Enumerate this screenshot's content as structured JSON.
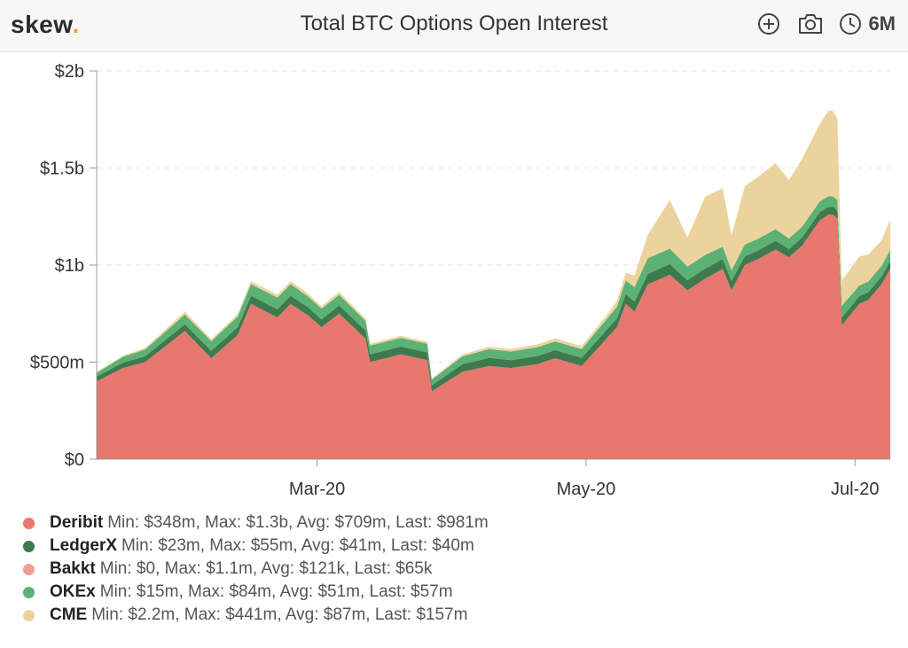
{
  "header": {
    "logo_text": "skew",
    "logo_dot": ".",
    "title": "Total BTC Options Open Interest",
    "icons": [
      "plus-circle-icon",
      "camera-icon",
      "clock-icon"
    ],
    "range_label": "6M"
  },
  "legend": [
    {
      "name": "Deribit",
      "stats": "Min: $348m, Max: $1.3b, Avg: $709m, Last: $981m",
      "color": "#e8776f"
    },
    {
      "name": "LedgerX",
      "stats": "Min: $23m, Max: $55m, Avg: $41m, Last: $40m",
      "color": "#3f7a4e"
    },
    {
      "name": "Bakkt",
      "stats": "Min: $0, Max: $1.1m, Avg: $121k, Last: $65k",
      "color": "#ee9d97"
    },
    {
      "name": "OKEx",
      "stats": "Min: $15m, Max: $84m, Avg: $51m, Last: $57m",
      "color": "#5cb174"
    },
    {
      "name": "CME",
      "stats": "Min: $2.2m, Max: $441m, Avg: $87m, Last: $157m",
      "color": "#ecd39e"
    }
  ],
  "chart_data": {
    "type": "area",
    "stacked": true,
    "title": "Total BTC Options Open Interest",
    "xlabel": "",
    "ylabel": "",
    "x_ticks": [
      "Mar-20",
      "May-20",
      "Jul-20"
    ],
    "x_tick_dates": [
      "2020-03-01",
      "2020-05-01",
      "2020-07-01"
    ],
    "y_ticks": [
      "$0",
      "$500m",
      "$1b",
      "$1.5b",
      "$2b"
    ],
    "y_tick_values": [
      0,
      500,
      1000,
      1500,
      2000
    ],
    "y_unit": "$m",
    "ylim": [
      0,
      2000
    ],
    "xlim": [
      "2020-01-11",
      "2020-07-09"
    ],
    "grid": true,
    "legend_position": "bottom",
    "x": [
      "2020-01-11",
      "2020-01-17",
      "2020-01-22",
      "2020-01-31",
      "2020-02-06",
      "2020-02-12",
      "2020-02-15",
      "2020-02-21",
      "2020-02-24",
      "2020-02-28",
      "2020-03-02",
      "2020-03-06",
      "2020-03-12",
      "2020-03-13",
      "2020-03-20",
      "2020-03-26",
      "2020-03-27",
      "2020-04-03",
      "2020-04-09",
      "2020-04-14",
      "2020-04-20",
      "2020-04-24",
      "2020-04-30",
      "2020-05-06",
      "2020-05-08",
      "2020-05-10",
      "2020-05-12",
      "2020-05-15",
      "2020-05-20",
      "2020-05-24",
      "2020-05-28",
      "2020-06-01",
      "2020-06-03",
      "2020-06-06",
      "2020-06-09",
      "2020-06-13",
      "2020-06-16",
      "2020-06-19",
      "2020-06-23",
      "2020-06-25",
      "2020-06-26",
      "2020-06-27",
      "2020-06-28",
      "2020-07-02",
      "2020-07-04",
      "2020-07-07",
      "2020-07-09"
    ],
    "series": [
      {
        "name": "Deribit",
        "values": [
          400,
          470,
          500,
          660,
          520,
          640,
          800,
          730,
          800,
          740,
          680,
          750,
          620,
          500,
          540,
          510,
          350,
          450,
          480,
          470,
          490,
          520,
          480,
          630,
          680,
          800,
          760,
          900,
          950,
          870,
          930,
          980,
          870,
          1000,
          1030,
          1080,
          1040,
          1100,
          1230,
          1260,
          1260,
          1240,
          690,
          800,
          820,
          900,
          981
        ]
      },
      {
        "name": "LedgerX",
        "values": [
          25,
          28,
          30,
          35,
          38,
          40,
          42,
          42,
          42,
          42,
          40,
          42,
          42,
          40,
          40,
          40,
          30,
          40,
          42,
          40,
          42,
          42,
          42,
          45,
          45,
          50,
          52,
          55,
          55,
          52,
          52,
          50,
          48,
          45,
          45,
          45,
          42,
          42,
          42,
          40,
          40,
          40,
          40,
          40,
          40,
          40,
          40
        ]
      },
      {
        "name": "Bakkt",
        "values": [
          0,
          0,
          0,
          0,
          0,
          0,
          0,
          0,
          0,
          0,
          0,
          0,
          0,
          0,
          0,
          0,
          0,
          0,
          0,
          0,
          0,
          0,
          0,
          0,
          0,
          0,
          0,
          0,
          0,
          0,
          0,
          0,
          0,
          0,
          0,
          0,
          0,
          0,
          0,
          0,
          0,
          0,
          0,
          0,
          0,
          0,
          0.065
        ]
      },
      {
        "name": "OKEx",
        "values": [
          20,
          30,
          35,
          50,
          50,
          55,
          60,
          60,
          60,
          55,
          55,
          55,
          50,
          45,
          45,
          45,
          30,
          40,
          45,
          45,
          45,
          45,
          45,
          55,
          60,
          70,
          75,
          80,
          80,
          70,
          70,
          65,
          55,
          60,
          60,
          60,
          55,
          55,
          55,
          55,
          55,
          55,
          60,
          55,
          55,
          55,
          57
        ]
      },
      {
        "name": "CME",
        "values": [
          5,
          5,
          8,
          15,
          10,
          12,
          15,
          15,
          15,
          15,
          12,
          15,
          12,
          10,
          10,
          10,
          5,
          10,
          12,
          12,
          15,
          15,
          15,
          20,
          30,
          40,
          60,
          120,
          250,
          150,
          300,
          300,
          180,
          300,
          320,
          340,
          300,
          350,
          400,
          440,
          440,
          420,
          130,
          150,
          140,
          130,
          157
        ]
      }
    ]
  }
}
